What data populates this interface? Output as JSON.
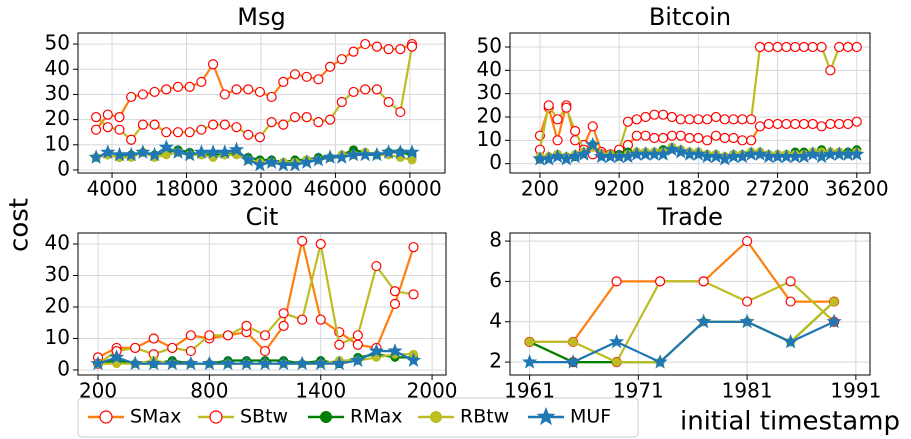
{
  "ylabel": "cost",
  "xlabel": "initial timestamp",
  "chart_data": [
    {
      "type": "line",
      "title": "Msg",
      "x": [
        1000,
        3200,
        5400,
        7600,
        9800,
        12000,
        14200,
        16400,
        18600,
        20800,
        23000,
        25200,
        27400,
        29600,
        31800,
        34000,
        36200,
        38400,
        40600,
        42800,
        45000,
        47200,
        49400,
        51600,
        53800,
        56000,
        58200,
        60400
      ],
      "xlim": [
        -2400,
        66600
      ],
      "xticks": [
        4000,
        18000,
        32000,
        46000,
        60000
      ],
      "ylim": [
        -1.2,
        54.4
      ],
      "yticks": [
        0,
        10,
        20,
        30,
        40,
        50
      ],
      "grid": true,
      "series": [
        {
          "name": "SMax",
          "color": "#ff7f0e",
          "marker": "hollow-circle",
          "marker_edge": "#ff0000",
          "values": [
            16,
            22,
            21,
            29,
            30,
            31,
            32,
            33,
            33,
            35,
            42,
            30,
            32,
            32,
            31,
            29,
            35,
            38,
            37,
            36,
            41,
            44,
            47,
            50,
            49,
            48,
            48,
            50
          ]
        },
        {
          "name": "SBtw",
          "color": "#bcbd22",
          "marker": "hollow-circle",
          "marker_edge": "#ff0000",
          "values": [
            21,
            17,
            16,
            12,
            18,
            18,
            15,
            15,
            15,
            16,
            18,
            18,
            17,
            14,
            13,
            19,
            18,
            21,
            21,
            19,
            20,
            27,
            31,
            32,
            32,
            27,
            23,
            49
          ]
        },
        {
          "name": "RMax",
          "color": "#007f00",
          "marker": "circle",
          "values": [
            5,
            6,
            5,
            6,
            7,
            6,
            7,
            8,
            7,
            6,
            6,
            6,
            7,
            5,
            4,
            4,
            3,
            4,
            4,
            5,
            5,
            6,
            8,
            7,
            6,
            7,
            7,
            6
          ]
        },
        {
          "name": "RBtw",
          "color": "#bcbd22",
          "marker": "circle",
          "values": [
            5,
            6,
            5,
            5,
            7,
            5,
            6,
            7,
            6,
            6,
            5,
            6,
            6,
            4,
            3,
            3,
            3,
            3,
            4,
            4,
            5,
            6,
            6,
            7,
            6,
            6,
            5,
            4
          ]
        },
        {
          "name": "MUF",
          "color": "#1f77b4",
          "marker": "star",
          "values": [
            5,
            7,
            6,
            6,
            7,
            6,
            9,
            7,
            6,
            7,
            7,
            7,
            8,
            4,
            2,
            3,
            2,
            2,
            3,
            4,
            5,
            5,
            6,
            6,
            6,
            7,
            7,
            7
          ]
        }
      ]
    },
    {
      "type": "line",
      "title": "Bitcoin",
      "x": [
        200,
        1200,
        2200,
        3200,
        4200,
        5200,
        6200,
        7200,
        8200,
        9200,
        10200,
        11200,
        12200,
        13200,
        14200,
        15200,
        16200,
        17200,
        18200,
        19200,
        20200,
        21200,
        22200,
        23200,
        24200,
        25200,
        26200,
        27200,
        28200,
        29200,
        30200,
        31200,
        32200,
        33200,
        34200,
        35200,
        36200
      ],
      "xlim": [
        -3200,
        37700
      ],
      "xticks": [
        200,
        9200,
        18200,
        27200,
        36200
      ],
      "ylim": [
        -4,
        56
      ],
      "yticks": [
        0,
        10,
        20,
        30,
        40,
        50
      ],
      "grid": true,
      "series": [
        {
          "name": "SMax",
          "color": "#ff7f0e",
          "marker": "hollow-circle",
          "marker_edge": "#ff0000",
          "values": [
            12,
            24,
            10,
            25,
            10,
            8,
            16,
            5,
            4,
            5,
            8,
            12,
            12,
            11,
            11,
            12,
            12,
            11,
            11,
            10,
            12,
            11,
            11,
            10,
            10,
            16,
            17,
            17,
            17,
            17,
            17,
            17,
            16,
            17,
            17,
            17,
            18
          ]
        },
        {
          "name": "SBtw",
          "color": "#bcbd22",
          "marker": "hollow-circle",
          "marker_edge": "#ff0000",
          "values": [
            6,
            25,
            19,
            24,
            14,
            6,
            4,
            4,
            4,
            6,
            18,
            19,
            20,
            21,
            21,
            20,
            19,
            19,
            19,
            19,
            20,
            19,
            19,
            19,
            19,
            50,
            50,
            50,
            50,
            50,
            50,
            50,
            50,
            40,
            50,
            50,
            50
          ]
        },
        {
          "name": "RMax",
          "color": "#007f00",
          "marker": "circle",
          "values": [
            2,
            3,
            4,
            3,
            3,
            5,
            8,
            4,
            4,
            4,
            5,
            5,
            5,
            5,
            6,
            7,
            6,
            5,
            5,
            4,
            4,
            3,
            4,
            4,
            5,
            5,
            4,
            4,
            4,
            5,
            5,
            5,
            6,
            5,
            5,
            5,
            6
          ]
        },
        {
          "name": "RBtw",
          "color": "#bcbd22",
          "marker": "circle",
          "values": [
            3,
            3,
            4,
            3,
            4,
            5,
            7,
            4,
            4,
            3,
            4,
            5,
            5,
            5,
            5,
            7,
            6,
            5,
            5,
            4,
            4,
            3,
            4,
            4,
            5,
            5,
            4,
            4,
            4,
            4,
            4,
            5,
            5,
            5,
            5,
            4,
            5
          ]
        },
        {
          "name": "MUF",
          "color": "#1f77b4",
          "marker": "star",
          "values": [
            2,
            2,
            3,
            2,
            3,
            4,
            8,
            3,
            3,
            3,
            3,
            4,
            4,
            4,
            4,
            6,
            5,
            4,
            4,
            3,
            3,
            2,
            3,
            3,
            4,
            4,
            3,
            3,
            3,
            3,
            3,
            4,
            3,
            4,
            4,
            4,
            4
          ]
        }
      ]
    },
    {
      "type": "line",
      "title": "Cit",
      "x": [
        200,
        300,
        400,
        500,
        600,
        700,
        800,
        900,
        1000,
        1100,
        1200,
        1300,
        1400,
        1500,
        1600,
        1700,
        1800,
        1900
      ],
      "xlim": [
        92,
        2075
      ],
      "xticks": [
        200,
        800,
        1400,
        2000
      ],
      "ylim": [
        -1.6,
        43.5
      ],
      "yticks": [
        0,
        10,
        20,
        30,
        40
      ],
      "grid": true,
      "series": [
        {
          "name": "SMax",
          "color": "#ff7f0e",
          "marker": "hollow-circle",
          "marker_edge": "#ff0000",
          "values": [
            4,
            7,
            7,
            10,
            7,
            11,
            10,
            11,
            12,
            6,
            14,
            41,
            16,
            12,
            8,
            7,
            21,
            39
          ]
        },
        {
          "name": "SBtw",
          "color": "#bcbd22",
          "marker": "hollow-circle",
          "marker_edge": "#ff0000",
          "values": [
            2,
            6,
            7,
            5,
            7,
            6,
            11,
            11,
            14,
            11,
            18,
            16,
            40,
            8,
            11,
            33,
            25,
            24
          ]
        },
        {
          "name": "RMax",
          "color": "#007f00",
          "marker": "circle",
          "values": [
            2,
            3,
            2,
            2,
            3,
            2,
            2,
            3,
            3,
            3,
            3,
            2,
            3,
            2,
            4,
            5,
            4,
            4
          ]
        },
        {
          "name": "RBtw",
          "color": "#bcbd22",
          "marker": "circle",
          "values": [
            2,
            2,
            2,
            3,
            2,
            2,
            2,
            2,
            2,
            2,
            2,
            2,
            2,
            3,
            3,
            4,
            5,
            5
          ]
        },
        {
          "name": "MUF",
          "color": "#1f77b4",
          "marker": "star",
          "values": [
            2,
            4,
            2,
            2,
            2,
            2,
            2,
            2,
            2,
            2,
            2,
            2,
            2,
            2,
            3,
            6,
            6,
            3
          ]
        }
      ]
    },
    {
      "type": "line",
      "title": "Trade",
      "x": [
        1961,
        1965,
        1969,
        1973,
        1977,
        1981,
        1985,
        1989
      ],
      "xlim": [
        1959.2,
        1992.3
      ],
      "xticks": [
        1961,
        1971,
        1981,
        1991
      ],
      "ylim": [
        1.36,
        8.4
      ],
      "yticks": [
        2,
        4,
        6,
        8
      ],
      "grid": true,
      "series": [
        {
          "name": "SMax",
          "color": "#ff7f0e",
          "marker": "hollow-circle",
          "marker_edge": "#ff0000",
          "values": [
            3,
            3,
            6,
            6,
            6,
            8,
            5,
            5
          ]
        },
        {
          "name": "SBtw",
          "color": "#bcbd22",
          "marker": "hollow-circle",
          "marker_edge": "#ff0000",
          "values": [
            3,
            2,
            2,
            6,
            6,
            5,
            6,
            4
          ]
        },
        {
          "name": "RMax",
          "color": "#007f00",
          "marker": "circle",
          "values": [
            3,
            2,
            2,
            2,
            4,
            4,
            3,
            5
          ]
        },
        {
          "name": "RBtw",
          "color": "#bcbd22",
          "marker": "circle",
          "values": [
            3,
            3,
            2,
            2,
            4,
            4,
            3,
            5
          ]
        },
        {
          "name": "MUF",
          "color": "#1f77b4",
          "marker": "star",
          "values": [
            2,
            2,
            3,
            2,
            4,
            4,
            3,
            4
          ]
        }
      ]
    }
  ]
}
